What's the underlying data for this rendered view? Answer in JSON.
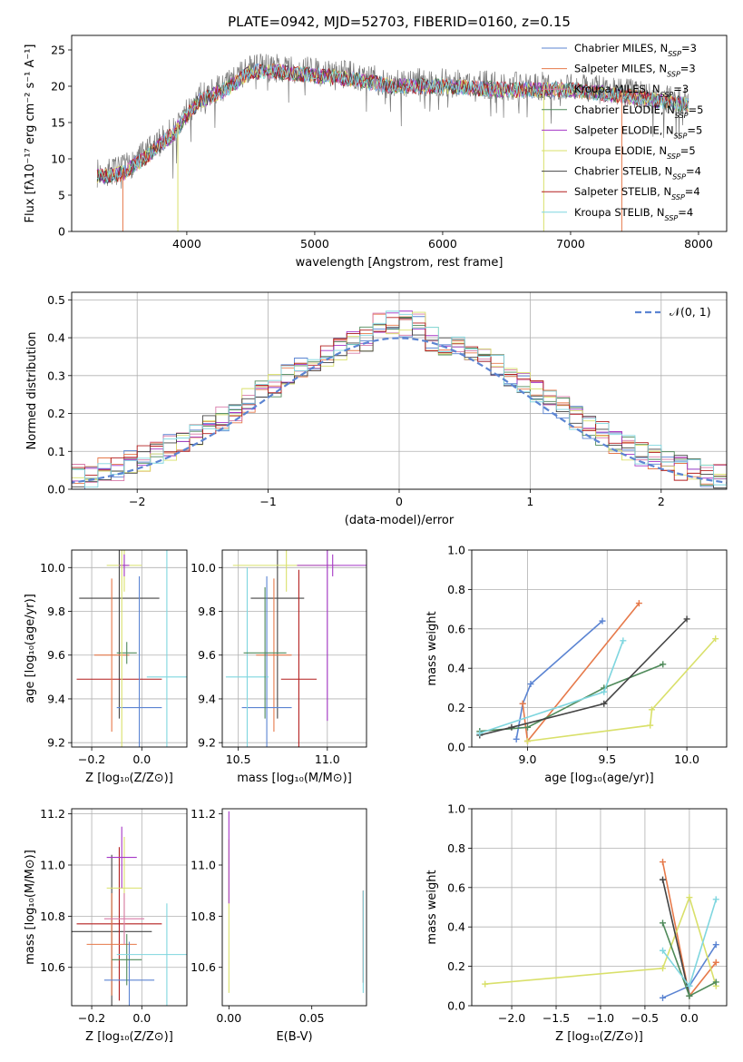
{
  "title": "PLATE=0942, MJD=52703, FIBERID=0160, z=0.15",
  "colors": {
    "Chabrier MILES": "#5b84d2",
    "Salpeter MILES": "#e6794a",
    "Kroupa MILES": "#d87aa8",
    "Chabrier ELODIE": "#4f8a5a",
    "Salpeter ELODIE": "#a536c6",
    "Kroupa ELODIE": "#d9e06a",
    "Chabrier STELIB": "#444444",
    "Salpeter STELIB": "#b41f1f",
    "Kroupa STELIB": "#7fd6df",
    "Normal": "#5b84d2"
  },
  "chart_data": [
    {
      "id": "spectrum",
      "type": "line",
      "xlabel": "wavelength [Angstrom, rest frame]",
      "ylabel": "Flux [fλ10⁻¹⁷ erg cm⁻² s⁻¹ A⁻¹]",
      "xlim": [
        3100,
        8220
      ],
      "ylim": [
        0,
        27
      ],
      "xticks": [
        "4000",
        "5000",
        "6000",
        "7000",
        "8000"
      ],
      "yticks": [
        "0",
        "5",
        "10",
        "15",
        "20",
        "25"
      ],
      "continuum": {
        "x": [
          3300,
          3500,
          3700,
          3900,
          4000,
          4100,
          4300,
          4500,
          4700,
          5000,
          5300,
          5600,
          6000,
          6500,
          7000,
          7500,
          7900
        ],
        "y": [
          8,
          8.5,
          11,
          14,
          16.5,
          18.5,
          20,
          22.5,
          22.5,
          22,
          21.5,
          20.5,
          20.5,
          20,
          20,
          19,
          18
        ]
      },
      "legend": [
        {
          "label": "Chabrier MILES, N",
          "sub": "SSP",
          "suffix": "=3"
        },
        {
          "label": "Salpeter MILES, N",
          "sub": "SSP",
          "suffix": "=3"
        },
        {
          "label": "Kroupa MILES, N",
          "sub": "SSP",
          "suffix": "=3"
        },
        {
          "label": "Chabrier ELODIE, N",
          "sub": "SSP",
          "suffix": "=5"
        },
        {
          "label": "Salpeter ELODIE, N",
          "sub": "SSP",
          "suffix": "=5"
        },
        {
          "label": "Kroupa ELODIE, N",
          "sub": "SSP",
          "suffix": "=5"
        },
        {
          "label": "Chabrier STELIB, N",
          "sub": "SSP",
          "suffix": "=4"
        },
        {
          "label": "Salpeter STELIB, N",
          "sub": "SSP",
          "suffix": "=4"
        },
        {
          "label": "Kroupa STELIB, N",
          "sub": "SSP",
          "suffix": "=4"
        }
      ],
      "legend_keys": [
        "Chabrier MILES",
        "Salpeter MILES",
        "Kroupa MILES",
        "Chabrier ELODIE",
        "Salpeter ELODIE",
        "Kroupa ELODIE",
        "Chabrier STELIB",
        "Salpeter STELIB",
        "Kroupa STELIB"
      ],
      "legend_position": "upper-right"
    },
    {
      "id": "residuals",
      "type": "step",
      "xlabel": "(data-model)/error",
      "ylabel": "Normed distribution",
      "xlim": [
        -2.5,
        2.5
      ],
      "ylim": [
        0,
        0.52
      ],
      "grid": true,
      "xticks": [
        "−2",
        "−1",
        "0",
        "1",
        "2"
      ],
      "yticks": [
        "0.0",
        "0.1",
        "0.2",
        "0.3",
        "0.4",
        "0.5"
      ],
      "bin_width": 0.1,
      "series_keys": [
        "Chabrier MILES",
        "Salpeter MILES",
        "Kroupa MILES",
        "Chabrier ELODIE",
        "Salpeter ELODIE",
        "Kroupa ELODIE",
        "Chabrier STELIB",
        "Salpeter STELIB",
        "Kroupa STELIB"
      ],
      "gaussian": {
        "label": "𝒩(0, 1)",
        "mean": 0,
        "sigma": 1
      },
      "legend_position": "upper-right"
    },
    {
      "id": "age-vs-Z",
      "type": "errorbar",
      "xlabel": "Z [log₁₀(Z/Z⊙)]",
      "ylabel": "age  [log₁₀(age/yr)]",
      "xlim": [
        -0.28,
        0.18
      ],
      "ylim": [
        9.18,
        10.08
      ],
      "grid": true,
      "xticks": [
        "−0.2",
        "0.0"
      ],
      "yticks": [
        "9.2",
        "9.4",
        "9.6",
        "9.8",
        "10.0"
      ]
    },
    {
      "id": "age-vs-mass",
      "type": "errorbar",
      "xlabel": "mass [log₁₀(M/M⊙)]",
      "xlim": [
        10.41,
        11.22
      ],
      "ylim": [
        9.18,
        10.08
      ],
      "grid": true,
      "xticks": [
        "10.5",
        "11.0"
      ],
      "yticks": [
        "9.2",
        "9.4",
        "9.6",
        "9.8",
        "10.0"
      ]
    },
    {
      "id": "weight-vs-age",
      "type": "line",
      "xlabel": "age  [log₁₀(age/yr)]",
      "ylabel": "mass weight",
      "xlim": [
        8.65,
        10.25
      ],
      "ylim": [
        0,
        1
      ],
      "grid": true,
      "xticks": [
        "9.0",
        "9.5",
        "10.0"
      ],
      "yticks": [
        "0.0",
        "0.2",
        "0.4",
        "0.6",
        "0.8",
        "1.0"
      ],
      "series": [
        {
          "key": "Chabrier MILES",
          "x": [
            8.93,
            8.97,
            9.02,
            9.47
          ],
          "y": [
            0.04,
            0.22,
            0.32,
            0.64
          ]
        },
        {
          "key": "Salpeter MILES",
          "x": [
            8.97,
            9.0,
            9.7
          ],
          "y": [
            0.22,
            0.03,
            0.73
          ]
        },
        {
          "key": "Chabrier ELODIE",
          "x": [
            8.7,
            9.0,
            9.48,
            9.85
          ],
          "y": [
            0.08,
            0.1,
            0.3,
            0.42
          ]
        },
        {
          "key": "Kroupa ELODIE",
          "x": [
            9.0,
            9.77,
            9.78,
            10.18
          ],
          "y": [
            0.03,
            0.11,
            0.19,
            0.55
          ]
        },
        {
          "key": "Chabrier STELIB",
          "x": [
            8.7,
            8.9,
            9.48,
            10.0
          ],
          "y": [
            0.06,
            0.1,
            0.22,
            0.65
          ]
        },
        {
          "key": "Kroupa STELIB",
          "x": [
            8.7,
            9.48,
            9.6
          ],
          "y": [
            0.07,
            0.28,
            0.54
          ]
        }
      ]
    },
    {
      "id": "mass-vs-Z",
      "type": "errorbar",
      "xlabel": "Z [log₁₀(Z/Z⊙)]",
      "ylabel": "mass [log₁₀(M/M⊙)]",
      "xlim": [
        -0.28,
        0.18
      ],
      "ylim": [
        10.45,
        11.22
      ],
      "grid": true,
      "xticks": [
        "−0.2",
        "0.0"
      ],
      "yticks": [
        "10.6",
        "10.8",
        "11.0",
        "11.2"
      ]
    },
    {
      "id": "mass-vs-EBV",
      "type": "errorbar",
      "xlabel": "E(B-V)",
      "xlim": [
        -0.004,
        0.083
      ],
      "ylim": [
        10.45,
        11.22
      ],
      "xticks": [
        "0.00",
        "0.05"
      ],
      "yticks": [
        "10.6",
        "10.8",
        "11.0",
        "11.2"
      ]
    },
    {
      "id": "weight-vs-Z",
      "type": "line",
      "xlabel": "Z [log₁₀(Z/Z⊙)]",
      "ylabel": "mass weight",
      "xlim": [
        -2.45,
        0.42
      ],
      "ylim": [
        0,
        1
      ],
      "grid": true,
      "xticks": [
        "−2.0",
        "−1.5",
        "−1.0",
        "−0.5",
        "0.0"
      ],
      "yticks": [
        "0.0",
        "0.2",
        "0.4",
        "0.6",
        "0.8",
        "1.0"
      ],
      "series": [
        {
          "key": "Salpeter MILES",
          "x": [
            -0.3,
            0.0,
            0.3
          ],
          "y": [
            0.73,
            0.05,
            0.22
          ]
        },
        {
          "key": "Chabrier MILES",
          "x": [
            -0.3,
            0.0,
            0.3
          ],
          "y": [
            0.04,
            0.1,
            0.31
          ]
        },
        {
          "key": "Kroupa ELODIE",
          "x": [
            -2.3,
            -0.3,
            0.0,
            0.3
          ],
          "y": [
            0.11,
            0.19,
            0.55,
            0.1
          ]
        },
        {
          "key": "Chabrier STELIB",
          "x": [
            -0.3,
            0.0
          ],
          "y": [
            0.64,
            0.05
          ]
        },
        {
          "key": "Chabrier ELODIE",
          "x": [
            -0.3,
            0.0,
            0.3
          ],
          "y": [
            0.42,
            0.05,
            0.12
          ]
        },
        {
          "key": "Kroupa STELIB",
          "x": [
            -0.3,
            0.0,
            0.3
          ],
          "y": [
            0.28,
            0.1,
            0.54
          ]
        }
      ]
    }
  ]
}
